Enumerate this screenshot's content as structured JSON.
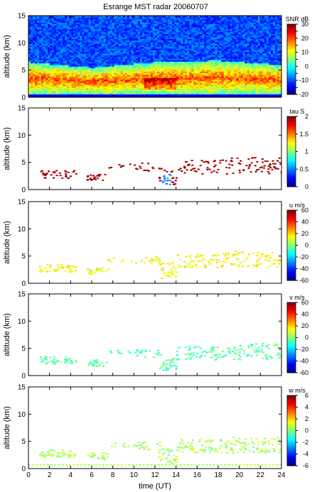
{
  "chart_data": {
    "type": "heatmap",
    "title": "Esrange MST radar 20060707",
    "xlabel": "time (UT)",
    "xlim": [
      0,
      24
    ],
    "x_ticks": [
      "0",
      "2",
      "4",
      "6",
      "8",
      "10",
      "12",
      "14",
      "16",
      "18",
      "20",
      "22",
      "24"
    ],
    "panels": [
      {
        "id": "snr",
        "ylabel": "altitude (km)",
        "ylim": [
          0,
          15
        ],
        "y_ticks": [
          "0",
          "5",
          "10",
          "15"
        ],
        "colorbar": {
          "label": "SNR dB",
          "range": [
            -20,
            30
          ],
          "ticks": [
            "-20",
            "-15",
            "-10",
            "-5",
            "0",
            "5",
            "10",
            "15",
            "20",
            "25",
            "30"
          ],
          "shown_ticks": [
            "-20",
            "-10",
            "0",
            "10",
            "20",
            "30"
          ]
        },
        "description_features": {
          "background_snr_db": -10,
          "enhanced_layer": [
            {
              "t": 0,
              "alt_lo": 0.5,
              "alt_hi": 6.5
            },
            {
              "t": 6,
              "alt_lo": 0.5,
              "alt_hi": 5.5
            },
            {
              "t": 12,
              "alt_lo": 0.5,
              "alt_hi": 6.5
            },
            {
              "t": 18,
              "alt_lo": 0.5,
              "alt_hi": 6.8
            },
            {
              "t": 24,
              "alt_lo": 0.5,
              "alt_hi": 6.0
            }
          ],
          "peak_snr_db": 30
        }
      },
      {
        "id": "tau",
        "ylabel": "altitude (km)",
        "ylim": [
          0,
          15
        ],
        "y_ticks": [
          "0",
          "5",
          "10",
          "15"
        ],
        "colorbar": {
          "label": "tau S",
          "range": [
            0,
            2
          ],
          "ticks": [
            "0",
            "0.5",
            "1",
            "1.5",
            "2"
          ],
          "shown_ticks": [
            "0",
            "0.5",
            "1",
            "1.5",
            "2"
          ]
        },
        "description_features": {
          "typical_value_s": 2,
          "echo_patches": [
            {
              "t_start": 1,
              "t_end": 4.5,
              "alt_lo": 2,
              "alt_hi": 3.5
            },
            {
              "t_start": 5.5,
              "t_end": 7.5,
              "alt_lo": 1.8,
              "alt_hi": 3
            },
            {
              "t_start": 10,
              "t_end": 12.5,
              "alt_lo": 3.5,
              "alt_hi": 5
            },
            {
              "t_start": 15,
              "t_end": 24,
              "alt_lo": 3,
              "alt_hi": 6
            }
          ],
          "low_tau_patch": {
            "t_start": 12.5,
            "t_end": 13.5,
            "alt_lo": 1,
            "alt_hi": 3,
            "value_s": 0.4
          }
        }
      },
      {
        "id": "u",
        "ylabel": "altitude (km)",
        "ylim": [
          0,
          15
        ],
        "y_ticks": [
          "0",
          "5",
          "10",
          "15"
        ],
        "colorbar": {
          "label": "u m/s",
          "range": [
            -60,
            60
          ],
          "ticks": [
            "-60",
            "-40",
            "-20",
            "0",
            "20",
            "40",
            "60"
          ],
          "shown_ticks": [
            "-60",
            "-40",
            "-20",
            "0",
            "20",
            "40",
            "60"
          ]
        },
        "description_features": {
          "typical_value_ms": 15
        }
      },
      {
        "id": "v",
        "ylabel": "altitude (km)",
        "ylim": [
          0,
          15
        ],
        "y_ticks": [
          "0",
          "5",
          "10",
          "15"
        ],
        "colorbar": {
          "label": "v m/s",
          "range": [
            -60,
            60
          ],
          "ticks": [
            "-60",
            "-40",
            "-20",
            "0",
            "20",
            "40",
            "60"
          ],
          "shown_ticks": [
            "-60",
            "-40",
            "-20",
            "0",
            "20",
            "40",
            "60"
          ]
        },
        "description_features": {
          "typical_value_ms": -5
        }
      },
      {
        "id": "w",
        "ylabel": "altitude (km)",
        "ylim": [
          0,
          15
        ],
        "y_ticks": [
          "0",
          "5",
          "10",
          "15"
        ],
        "colorbar": {
          "label": "w m/s",
          "range": [
            -6,
            6
          ],
          "ticks": [
            "-6",
            "-4",
            "-2",
            "0",
            "2",
            "4",
            "6"
          ],
          "shown_ticks": [
            "-6",
            "-4",
            "-2",
            "0",
            "2",
            "4",
            "6"
          ]
        },
        "description_features": {
          "typical_value_ms": 0.5
        }
      }
    ],
    "grid": false,
    "colormap": "jet"
  }
}
